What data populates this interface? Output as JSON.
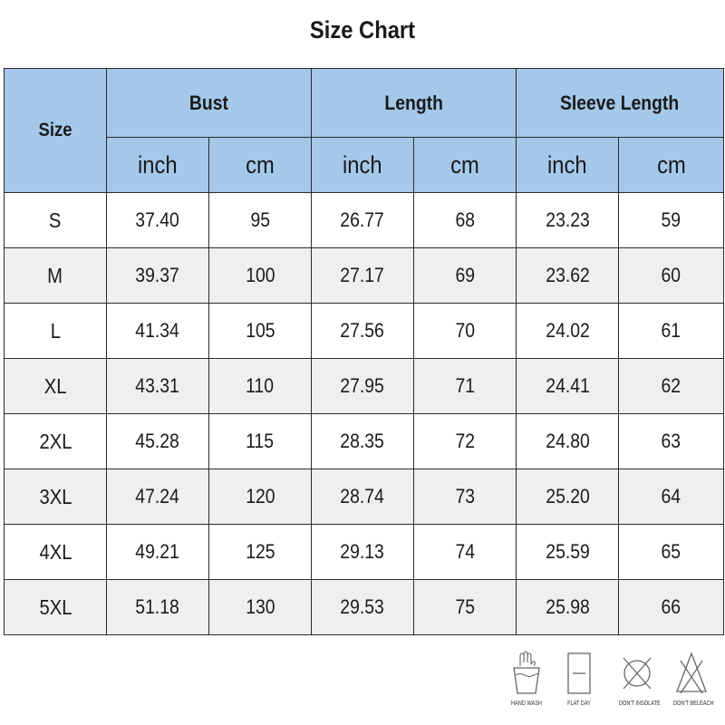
{
  "title": "Size Chart",
  "header": {
    "size": "Size",
    "groups": [
      "Bust",
      "Length",
      "Sleeve Length"
    ],
    "units": [
      "inch",
      "cm",
      "inch",
      "cm",
      "inch",
      "cm"
    ]
  },
  "rows": [
    [
      "S",
      "37.40",
      "95",
      "26.77",
      "68",
      "23.23",
      "59"
    ],
    [
      "M",
      "39.37",
      "100",
      "27.17",
      "69",
      "23.62",
      "60"
    ],
    [
      "L",
      "41.34",
      "105",
      "27.56",
      "70",
      "24.02",
      "61"
    ],
    [
      "XL",
      "43.31",
      "110",
      "27.95",
      "71",
      "24.41",
      "62"
    ],
    [
      "2XL",
      "45.28",
      "115",
      "28.35",
      "72",
      "24.80",
      "63"
    ],
    [
      "3XL",
      "47.24",
      "120",
      "28.74",
      "73",
      "25.20",
      "64"
    ],
    [
      "4XL",
      "49.21",
      "125",
      "29.13",
      "74",
      "25.59",
      "65"
    ],
    [
      "5XL",
      "51.18",
      "130",
      "29.53",
      "75",
      "25.98",
      "66"
    ]
  ],
  "care_icons": [
    {
      "icon": "hand-wash-icon",
      "label": "HAND WASH"
    },
    {
      "icon": "flat-dry-icon",
      "label": "FLAT DAY"
    },
    {
      "icon": "do-not-insolate-icon",
      "label": "DON'T INSOLATE"
    },
    {
      "icon": "do-not-bleach-icon",
      "label": "DON'T BELEACH"
    }
  ]
}
